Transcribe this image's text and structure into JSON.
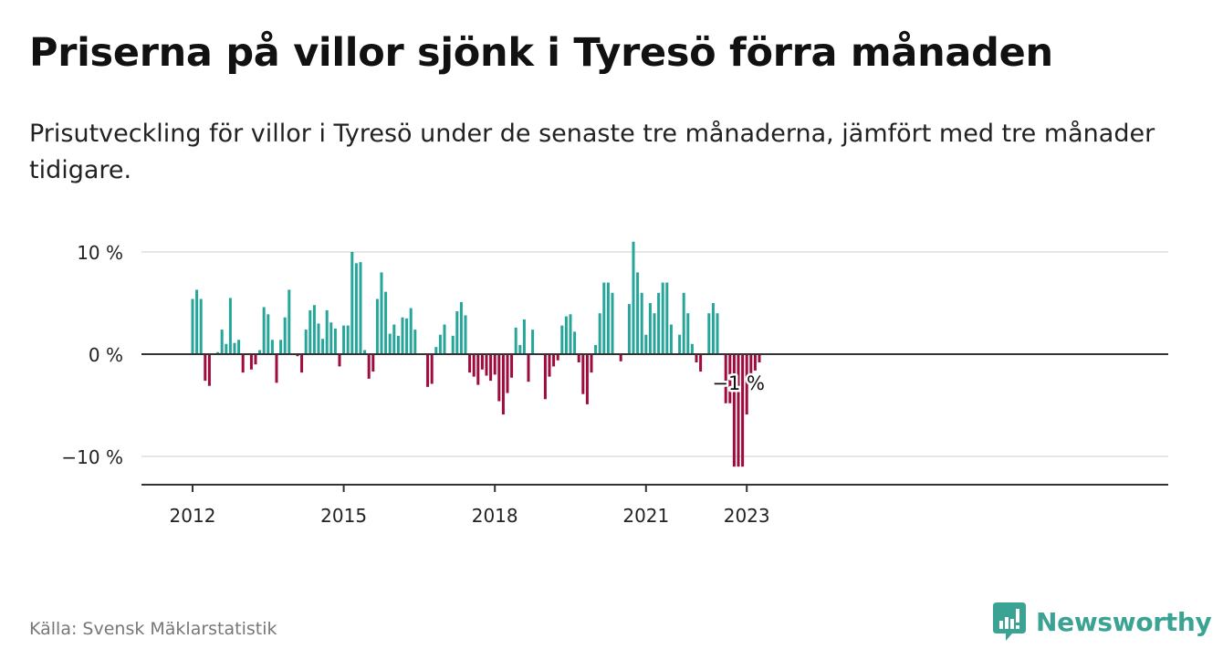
{
  "header": {
    "title": "Priserna på villor sjönk i Tyresö förra månaden",
    "subtitle": "Prisutveckling för villor i Tyresö under de senaste tre månaderna, jämfört med tre månader tidigare."
  },
  "footer": {
    "source": "Källa: Svensk Mäklarstatistik",
    "brand": "Newsworthy"
  },
  "colors": {
    "positive": "#26a69a",
    "negative": "#9e0b3c",
    "brand": "#3aa394",
    "grid": "#dddddd",
    "axis": "#333333"
  },
  "chart_data": {
    "type": "bar",
    "x_unit": "month",
    "series": [
      {
        "start": "2012-01",
        "values": [
          5.4,
          6.3,
          5.4,
          -2.6,
          -3.1,
          0,
          0.2,
          2.4,
          1.0,
          5.5,
          1.1,
          1.4,
          -1.8,
          0,
          -1.5,
          -1.0,
          0.4,
          4.6,
          3.9,
          1.4,
          -2.8,
          1.4,
          3.6,
          6.3,
          0,
          -0.2,
          -1.8,
          2.4,
          4.3,
          4.8,
          3.0,
          1.5,
          4.3,
          3.1,
          2.5,
          -1.2,
          2.8,
          2.8,
          10.0,
          8.9,
          9.0,
          0.4,
          -2.4,
          -1.7,
          5.4,
          8.0,
          6.1,
          2.0,
          2.9,
          1.8,
          3.6,
          3.5,
          4.5,
          2.4,
          0,
          0,
          -3.2,
          -2.9,
          0.7,
          1.9,
          2.9,
          0,
          1.8,
          4.2,
          5.1,
          3.8,
          -1.8,
          -2.2,
          -3.0,
          -1.5,
          -2.1,
          -2.6,
          -2.0,
          -4.6,
          -5.9,
          -3.8,
          -2.3,
          2.6,
          0.9,
          3.4,
          -2.7,
          2.4,
          0,
          0,
          -4.4,
          -2.2,
          -1.2,
          -0.6,
          2.8,
          3.7,
          3.9,
          2.2,
          -0.8,
          -3.9,
          -4.9,
          -1.8,
          0.9,
          4.0,
          7.0,
          7.0,
          6.0,
          0,
          -0.7,
          0,
          4.9,
          11.0,
          8.0,
          6.0,
          1.9,
          5.0,
          4.0,
          6.0,
          7.0,
          7.0,
          2.9,
          0,
          1.9,
          6.0,
          4.0,
          1.0,
          -0.8,
          -1.7,
          0,
          4.0,
          5.0,
          4.0,
          0,
          -4.8,
          -4.8,
          -11.0,
          -11.0,
          -11.0,
          -5.9,
          -2.0,
          -1.6,
          -0.8
        ]
      }
    ],
    "x_ticks": [
      "2012",
      "2015",
      "2018",
      "2021",
      "2023"
    ],
    "y_ticks": [
      {
        "value": 10,
        "label": "10 %"
      },
      {
        "value": 0,
        "label": "0 %"
      },
      {
        "value": -10,
        "label": "−10 %"
      }
    ],
    "ylim": [
      -13,
      13
    ],
    "grid": true,
    "last_value_label": "−1 %"
  }
}
